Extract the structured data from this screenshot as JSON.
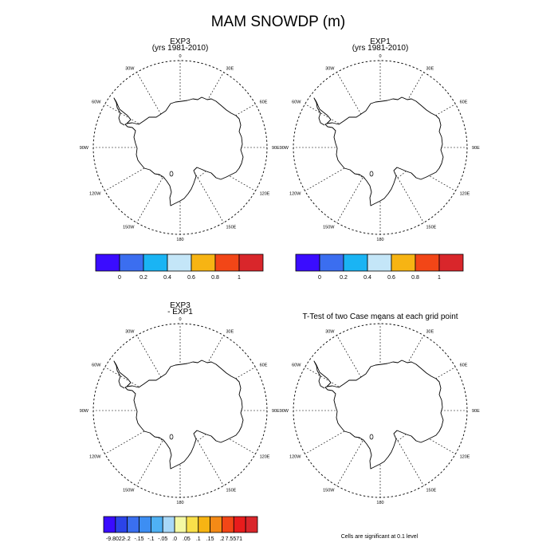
{
  "figure": {
    "title": "MAM SNOWDP (m)"
  },
  "panels": [
    {
      "id": "exp3",
      "title_line1": "EXP3",
      "title_line2": "(yrs 1981-2010)",
      "lon_labels": [
        "0",
        "30E",
        "60E",
        "90E",
        "120E",
        "150E",
        "180",
        "150W",
        "120W",
        "90W",
        "60W",
        "30W"
      ]
    },
    {
      "id": "exp1",
      "title_line1": "EXP1",
      "title_line2": "(yrs 1981-2010)",
      "lon_labels": [
        "0",
        "30E",
        "60E",
        "90E",
        "120E",
        "150E",
        "180",
        "150W",
        "120W",
        "90W",
        "60W",
        "30W"
      ]
    },
    {
      "id": "diff",
      "title_line1": "EXP3",
      "title_line2": "- EXP1",
      "lon_labels": [
        "0",
        "30E",
        "60E",
        "90E",
        "120E",
        "150E",
        "180",
        "150W",
        "120W",
        "90W",
        "60W",
        "30W"
      ]
    },
    {
      "id": "ttest",
      "title_line1": "T-Test of two Case means at each grid point",
      "title_line2": "",
      "lon_labels": [
        "0",
        "30E",
        "60E",
        "90E",
        "120E",
        "150E",
        "180",
        "150W",
        "120W",
        "90W",
        "60W",
        "30W"
      ]
    }
  ],
  "colorbars": [
    {
      "id": "cb-exp3",
      "colors": [
        "#3a0cff",
        "#3b6ef0",
        "#1ab4f4",
        "#c4e6f8",
        "#f7b413",
        "#f24617",
        "#d9262b"
      ],
      "labels": [
        "0",
        "0.2",
        "0.4",
        "0.6",
        "0.8",
        "1"
      ]
    },
    {
      "id": "cb-exp1",
      "colors": [
        "#3a0cff",
        "#3b6ef0",
        "#1ab4f4",
        "#c4e6f8",
        "#f7b413",
        "#f24617",
        "#d9262b"
      ],
      "labels": [
        "0",
        "0.2",
        "0.4",
        "0.6",
        "0.8",
        "1"
      ]
    },
    {
      "id": "cb-diff",
      "colors": [
        "#3a0cff",
        "#2b44e8",
        "#3a6ff0",
        "#3d8ef3",
        "#4fb1f4",
        "#a8d8f8",
        "#f4f9a4",
        "#f9e04a",
        "#f7b413",
        "#f48a16",
        "#f24617",
        "#e81c1c",
        "#d9262b"
      ],
      "labels": [
        "-9.8022",
        "-.2",
        "-.15",
        "-.1",
        "-.05",
        ".0",
        ".05",
        ".1",
        ".15",
        ".2",
        "7.5571"
      ]
    }
  ],
  "note": {
    "text": "Cells are significant at 0.1 level"
  }
}
